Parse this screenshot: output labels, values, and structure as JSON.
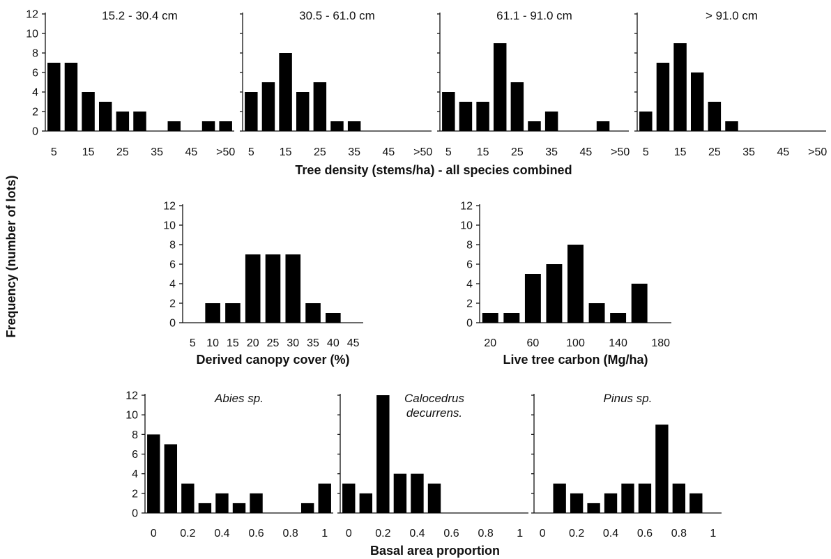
{
  "figure": {
    "ylabel": "Frequency (number of lots)",
    "row1_xlabel": "Tree density (stems/ha) - all species combined",
    "row3_xlabel": "Basal area proportion"
  },
  "chart_data": [
    {
      "type": "bar",
      "title": "15.2 - 30.4 cm",
      "xtick_labels": [
        "5",
        "15",
        "25",
        "35",
        "45",
        ">50"
      ],
      "categories": [
        "5",
        "10",
        "15",
        "20",
        "25",
        "30",
        "35",
        "40",
        "45",
        "50",
        ">50"
      ],
      "values": [
        7,
        7,
        4,
        3,
        2,
        2,
        0,
        1,
        0,
        1,
        1
      ],
      "ylim": [
        0,
        12
      ],
      "yticks": [
        0,
        2,
        4,
        6,
        8,
        10,
        12
      ]
    },
    {
      "type": "bar",
      "title": "30.5 - 61.0 cm",
      "xtick_labels": [
        "5",
        "15",
        "25",
        "35",
        "45",
        ">50"
      ],
      "categories": [
        "5",
        "10",
        "15",
        "20",
        "25",
        "30",
        "35",
        "40",
        "45",
        "50",
        ">50"
      ],
      "values": [
        4,
        5,
        8,
        4,
        5,
        1,
        1,
        0,
        0,
        0,
        0
      ],
      "ylim": [
        0,
        12
      ]
    },
    {
      "type": "bar",
      "title": "61.1 - 91.0 cm",
      "xtick_labels": [
        "5",
        "15",
        "25",
        "35",
        "45",
        ">50"
      ],
      "categories": [
        "5",
        "10",
        "15",
        "20",
        "25",
        "30",
        "35",
        "40",
        "45",
        "50",
        ">50"
      ],
      "values": [
        4,
        3,
        3,
        9,
        5,
        1,
        2,
        0,
        0,
        1,
        0
      ],
      "ylim": [
        0,
        12
      ]
    },
    {
      "type": "bar",
      "title": "> 91.0 cm",
      "xtick_labels": [
        "5",
        "15",
        "25",
        "35",
        "45",
        ">50"
      ],
      "categories": [
        "5",
        "10",
        "15",
        "20",
        "25",
        "30",
        "35",
        "40",
        "45",
        "50",
        ">50"
      ],
      "values": [
        2,
        7,
        9,
        6,
        3,
        1,
        0,
        0,
        0,
        0,
        0
      ],
      "ylim": [
        0,
        12
      ]
    },
    {
      "type": "bar",
      "title": "",
      "xlabel": "Derived canopy cover (%)",
      "xtick_labels": [
        "5",
        "10",
        "15",
        "20",
        "25",
        "30",
        "35",
        "40",
        "45"
      ],
      "categories": [
        "5",
        "10",
        "15",
        "20",
        "25",
        "30",
        "35",
        "40",
        "45"
      ],
      "values": [
        0,
        2,
        2,
        7,
        7,
        7,
        2,
        1,
        0
      ],
      "ylim": [
        0,
        12
      ],
      "yticks": [
        0,
        2,
        4,
        6,
        8,
        10,
        12
      ]
    },
    {
      "type": "bar",
      "title": "",
      "xlabel": "Live tree carbon (Mg/ha)",
      "xtick_labels": [
        "20",
        "60",
        "100",
        "140",
        "180"
      ],
      "categories": [
        "20",
        "40",
        "60",
        "80",
        "100",
        "120",
        "140",
        "160",
        "180"
      ],
      "values": [
        1,
        1,
        5,
        6,
        8,
        2,
        1,
        4,
        0
      ],
      "ylim": [
        0,
        12
      ],
      "yticks": [
        0,
        2,
        4,
        6,
        8,
        10,
        12
      ]
    },
    {
      "type": "bar",
      "title": "Abies sp.",
      "xtick_labels": [
        "0",
        "0.2",
        "0.4",
        "0.6",
        "0.8",
        "1"
      ],
      "categories": [
        "0",
        "0.1",
        "0.2",
        "0.3",
        "0.4",
        "0.5",
        "0.6",
        "0.7",
        "0.8",
        "0.9",
        "1"
      ],
      "values": [
        8,
        7,
        3,
        1,
        2,
        1,
        2,
        0,
        0,
        1,
        3
      ],
      "ylim": [
        0,
        12
      ],
      "yticks": [
        0,
        2,
        4,
        6,
        8,
        10,
        12
      ]
    },
    {
      "type": "bar",
      "title": "Calocedrus decurrens.",
      "title_lines": [
        "Calocedrus",
        "decurrens."
      ],
      "xtick_labels": [
        "0",
        "0.2",
        "0.4",
        "0.6",
        "0.8",
        "1"
      ],
      "categories": [
        "0",
        "0.1",
        "0.2",
        "0.3",
        "0.4",
        "0.5",
        "0.6",
        "0.7",
        "0.8",
        "0.9",
        "1"
      ],
      "values": [
        3,
        2,
        12,
        4,
        4,
        3,
        0,
        0,
        0,
        0,
        0
      ],
      "ylim": [
        0,
        12
      ]
    },
    {
      "type": "bar",
      "title": "Pinus sp.",
      "xtick_labels": [
        "0",
        "0.2",
        "0.4",
        "0.6",
        "0.8",
        "1"
      ],
      "categories": [
        "0",
        "0.1",
        "0.2",
        "0.3",
        "0.4",
        "0.5",
        "0.6",
        "0.7",
        "0.8",
        "0.9",
        "1"
      ],
      "values": [
        0,
        3,
        2,
        1,
        2,
        3,
        3,
        9,
        3,
        2,
        0
      ],
      "ylim": [
        0,
        12
      ]
    }
  ]
}
